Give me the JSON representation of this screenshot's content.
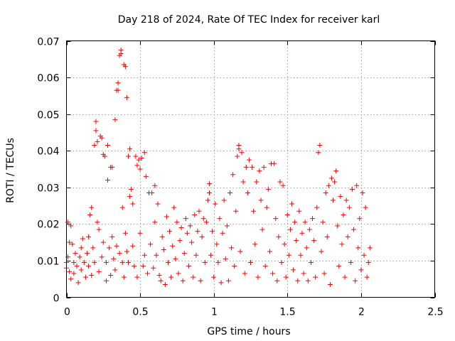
{
  "chart_data": {
    "type": "scatter",
    "title": "Day 218 of 2024, Rate Of TEC Index for receiver karl",
    "xlabel": "GPS time / hours",
    "ylabel": "ROTI / TECUs",
    "xlim": [
      0,
      2.5
    ],
    "ylim": [
      0,
      0.07
    ],
    "xticks": [
      0,
      0.5,
      1,
      1.5,
      2,
      2.5
    ],
    "xtick_labels": [
      "0",
      "0.5",
      "1",
      "1.5",
      "2",
      "2.5"
    ],
    "yticks": [
      0,
      0.01,
      0.02,
      0.03,
      0.04,
      0.05,
      0.06,
      0.07
    ],
    "ytick_labels": [
      "0",
      "0.01",
      "0.02",
      "0.03",
      "0.04",
      "0.05",
      "0.06",
      "0.07"
    ],
    "grid": true,
    "marker": "+",
    "color": "#ff0000",
    "series": [
      {
        "name": "karl",
        "points": [
          [
            0.0,
            0.008
          ],
          [
            0.0,
            0.0095
          ],
          [
            0.01,
            0.0205
          ],
          [
            0.01,
            0.011
          ],
          [
            0.02,
            0.007
          ],
          [
            0.02,
            0.015
          ],
          [
            0.03,
            0.0195
          ],
          [
            0.03,
            0.005
          ],
          [
            0.04,
            0.0145
          ],
          [
            0.05,
            0.0095
          ],
          [
            0.05,
            0.0065
          ],
          [
            0.06,
            0.012
          ],
          [
            0.07,
            0.0085
          ],
          [
            0.08,
            0.004
          ],
          [
            0.09,
            0.011
          ],
          [
            0.1,
            0.0135
          ],
          [
            0.1,
            0.0075
          ],
          [
            0.11,
            0.016
          ],
          [
            0.12,
            0.0095
          ],
          [
            0.13,
            0.0055
          ],
          [
            0.14,
            0.012
          ],
          [
            0.15,
            0.0165
          ],
          [
            0.15,
            0.0085
          ],
          [
            0.16,
            0.0225
          ],
          [
            0.17,
            0.0245
          ],
          [
            0.17,
            0.006
          ],
          [
            0.18,
            0.0135
          ],
          [
            0.19,
            0.0095
          ],
          [
            0.19,
            0.0415
          ],
          [
            0.2,
            0.048
          ],
          [
            0.2,
            0.0455
          ],
          [
            0.21,
            0.0425
          ],
          [
            0.21,
            0.0205
          ],
          [
            0.22,
            0.0185
          ],
          [
            0.22,
            0.007
          ],
          [
            0.23,
            0.044
          ],
          [
            0.24,
            0.0435
          ],
          [
            0.24,
            0.011
          ],
          [
            0.25,
            0.039
          ],
          [
            0.25,
            0.015
          ],
          [
            0.26,
            0.0385
          ],
          [
            0.27,
            0.0045
          ],
          [
            0.27,
            0.0095
          ],
          [
            0.28,
            0.032
          ],
          [
            0.28,
            0.0415
          ],
          [
            0.29,
            0.0135
          ],
          [
            0.3,
            0.0355
          ],
          [
            0.3,
            0.006
          ],
          [
            0.31,
            0.0355
          ],
          [
            0.31,
            0.0165
          ],
          [
            0.32,
            0.0105
          ],
          [
            0.33,
            0.0485
          ],
          [
            0.33,
            0.0075
          ],
          [
            0.34,
            0.0565
          ],
          [
            0.34,
            0.014
          ],
          [
            0.35,
            0.0585
          ],
          [
            0.35,
            0.0565
          ],
          [
            0.36,
            0.066
          ],
          [
            0.36,
            0.012
          ],
          [
            0.37,
            0.0675
          ],
          [
            0.37,
            0.0665
          ],
          [
            0.38,
            0.0245
          ],
          [
            0.38,
            0.0095
          ],
          [
            0.39,
            0.0635
          ],
          [
            0.39,
            0.0055
          ],
          [
            0.4,
            0.063
          ],
          [
            0.4,
            0.0175
          ],
          [
            0.41,
            0.0545
          ],
          [
            0.41,
            0.0125
          ],
          [
            0.42,
            0.0095
          ],
          [
            0.42,
            0.0385
          ],
          [
            0.43,
            0.0405
          ],
          [
            0.43,
            0.0275
          ],
          [
            0.44,
            0.0295
          ],
          [
            0.45,
            0.0255
          ],
          [
            0.45,
            0.014
          ],
          [
            0.46,
            0.0085
          ],
          [
            0.47,
            0.0385
          ],
          [
            0.48,
            0.036
          ],
          [
            0.48,
            0.0055
          ],
          [
            0.49,
            0.0375
          ],
          [
            0.5,
            0.035
          ],
          [
            0.5,
            0.0175
          ],
          [
            0.51,
            0.038
          ],
          [
            0.52,
            0.0085
          ],
          [
            0.53,
            0.0395
          ],
          [
            0.53,
            0.0115
          ],
          [
            0.54,
            0.033
          ],
          [
            0.55,
            0.0065
          ],
          [
            0.56,
            0.0285
          ],
          [
            0.57,
            0.0145
          ],
          [
            0.58,
            0.0285
          ],
          [
            0.59,
            0.008
          ],
          [
            0.6,
            0.0305
          ],
          [
            0.6,
            0.0205
          ],
          [
            0.61,
            0.0115
          ],
          [
            0.62,
            0.0255
          ],
          [
            0.63,
            0.006
          ],
          [
            0.64,
            0.0045
          ],
          [
            0.65,
            0.0165
          ],
          [
            0.66,
            0.013
          ],
          [
            0.67,
            0.0035
          ],
          [
            0.68,
            0.022
          ],
          [
            0.69,
            0.0095
          ],
          [
            0.7,
            0.018
          ],
          [
            0.71,
            0.0055
          ],
          [
            0.72,
            0.014
          ],
          [
            0.73,
            0.0245
          ],
          [
            0.74,
            0.0105
          ],
          [
            0.75,
            0.0205
          ],
          [
            0.76,
            0.0065
          ],
          [
            0.77,
            0.0155
          ],
          [
            0.78,
            0.019
          ],
          [
            0.79,
            0.0045
          ],
          [
            0.8,
            0.012
          ],
          [
            0.81,
            0.0215
          ],
          [
            0.82,
            0.0175
          ],
          [
            0.83,
            0.0085
          ],
          [
            0.84,
            0.0195
          ],
          [
            0.85,
            0.015
          ],
          [
            0.86,
            0.0055
          ],
          [
            0.87,
            0.0225
          ],
          [
            0.88,
            0.0115
          ],
          [
            0.89,
            0.018
          ],
          [
            0.9,
            0.0235
          ],
          [
            0.91,
            0.0045
          ],
          [
            0.92,
            0.0165
          ],
          [
            0.93,
            0.0215
          ],
          [
            0.94,
            0.0095
          ],
          [
            0.95,
            0.0205
          ],
          [
            0.96,
            0.0265
          ],
          [
            0.97,
            0.0285
          ],
          [
            0.97,
            0.031
          ],
          [
            0.98,
            0.0115
          ],
          [
            0.99,
            0.018
          ],
          [
            1.0,
            0.0055
          ],
          [
            1.01,
            0.0255
          ],
          [
            1.02,
            0.0145
          ],
          [
            1.03,
            0.0095
          ],
          [
            1.04,
            0.0215
          ],
          [
            1.05,
            0.004
          ],
          [
            1.06,
            0.0175
          ],
          [
            1.07,
            0.0265
          ],
          [
            1.08,
            0.0105
          ],
          [
            1.09,
            0.0195
          ],
          [
            1.1,
            0.0045
          ],
          [
            1.11,
            0.0285
          ],
          [
            1.12,
            0.0135
          ],
          [
            1.13,
            0.0335
          ],
          [
            1.14,
            0.0085
          ],
          [
            1.15,
            0.0235
          ],
          [
            1.16,
            0.0385
          ],
          [
            1.17,
            0.0405
          ],
          [
            1.17,
            0.0415
          ],
          [
            1.18,
            0.0125
          ],
          [
            1.19,
            0.0395
          ],
          [
            1.2,
            0.0315
          ],
          [
            1.21,
            0.0065
          ],
          [
            1.22,
            0.0355
          ],
          [
            1.23,
            0.0285
          ],
          [
            1.24,
            0.0375
          ],
          [
            1.25,
            0.0095
          ],
          [
            1.26,
            0.0355
          ],
          [
            1.27,
            0.0235
          ],
          [
            1.28,
            0.0145
          ],
          [
            1.29,
            0.0315
          ],
          [
            1.3,
            0.0055
          ],
          [
            1.31,
            0.0345
          ],
          [
            1.32,
            0.0265
          ],
          [
            1.33,
            0.0185
          ],
          [
            1.34,
            0.0355
          ],
          [
            1.35,
            0.0085
          ],
          [
            1.36,
            0.0245
          ],
          [
            1.37,
            0.0295
          ],
          [
            1.38,
            0.0125
          ],
          [
            1.39,
            0.0365
          ],
          [
            1.4,
            0.0065
          ],
          [
            1.41,
            0.0365
          ],
          [
            1.42,
            0.0215
          ],
          [
            1.43,
            0.0045
          ],
          [
            1.44,
            0.0165
          ],
          [
            1.45,
            0.0315
          ],
          [
            1.46,
            0.0095
          ],
          [
            1.47,
            0.0305
          ],
          [
            1.48,
            0.0145
          ],
          [
            1.49,
            0.0055
          ],
          [
            1.5,
            0.0225
          ],
          [
            1.51,
            0.0115
          ],
          [
            1.52,
            0.0185
          ],
          [
            1.53,
            0.0255
          ],
          [
            1.54,
            0.0075
          ],
          [
            1.55,
            0.0205
          ],
          [
            1.56,
            0.0155
          ],
          [
            1.57,
            0.0045
          ],
          [
            1.58,
            0.0235
          ],
          [
            1.59,
            0.0115
          ],
          [
            1.6,
            0.0175
          ],
          [
            1.61,
            0.0065
          ],
          [
            1.62,
            0.0205
          ],
          [
            1.63,
            0.0135
          ],
          [
            1.64,
            0.0045
          ],
          [
            1.65,
            0.0185
          ],
          [
            1.66,
            0.0095
          ],
          [
            1.67,
            0.0215
          ],
          [
            1.68,
            0.0155
          ],
          [
            1.69,
            0.0055
          ],
          [
            1.7,
            0.0245
          ],
          [
            1.71,
            0.0395
          ],
          [
            1.72,
            0.0415
          ],
          [
            1.73,
            0.0125
          ],
          [
            1.74,
            0.0205
          ],
          [
            1.75,
            0.0065
          ],
          [
            1.76,
            0.0285
          ],
          [
            1.77,
            0.0165
          ],
          [
            1.78,
            0.0305
          ],
          [
            1.79,
            0.0035
          ],
          [
            1.8,
            0.0325
          ],
          [
            1.81,
            0.0265
          ],
          [
            1.82,
            0.0315
          ],
          [
            1.83,
            0.0345
          ],
          [
            1.84,
            0.0195
          ],
          [
            1.85,
            0.0085
          ],
          [
            1.86,
            0.0275
          ],
          [
            1.87,
            0.0145
          ],
          [
            1.88,
            0.0225
          ],
          [
            1.89,
            0.0055
          ],
          [
            1.9,
            0.0265
          ],
          [
            1.91,
            0.0165
          ],
          [
            1.92,
            0.0245
          ],
          [
            1.93,
            0.0095
          ],
          [
            1.94,
            0.0295
          ],
          [
            1.95,
            0.0185
          ],
          [
            1.96,
            0.0045
          ],
          [
            1.97,
            0.0305
          ],
          [
            1.98,
            0.0135
          ],
          [
            1.99,
            0.0215
          ],
          [
            2.0,
            0.0075
          ],
          [
            2.01,
            0.0285
          ],
          [
            2.02,
            0.0115
          ],
          [
            2.03,
            0.0245
          ],
          [
            2.04,
            0.0055
          ],
          [
            2.05,
            0.0095
          ],
          [
            2.06,
            0.0135
          ]
        ]
      }
    ]
  }
}
